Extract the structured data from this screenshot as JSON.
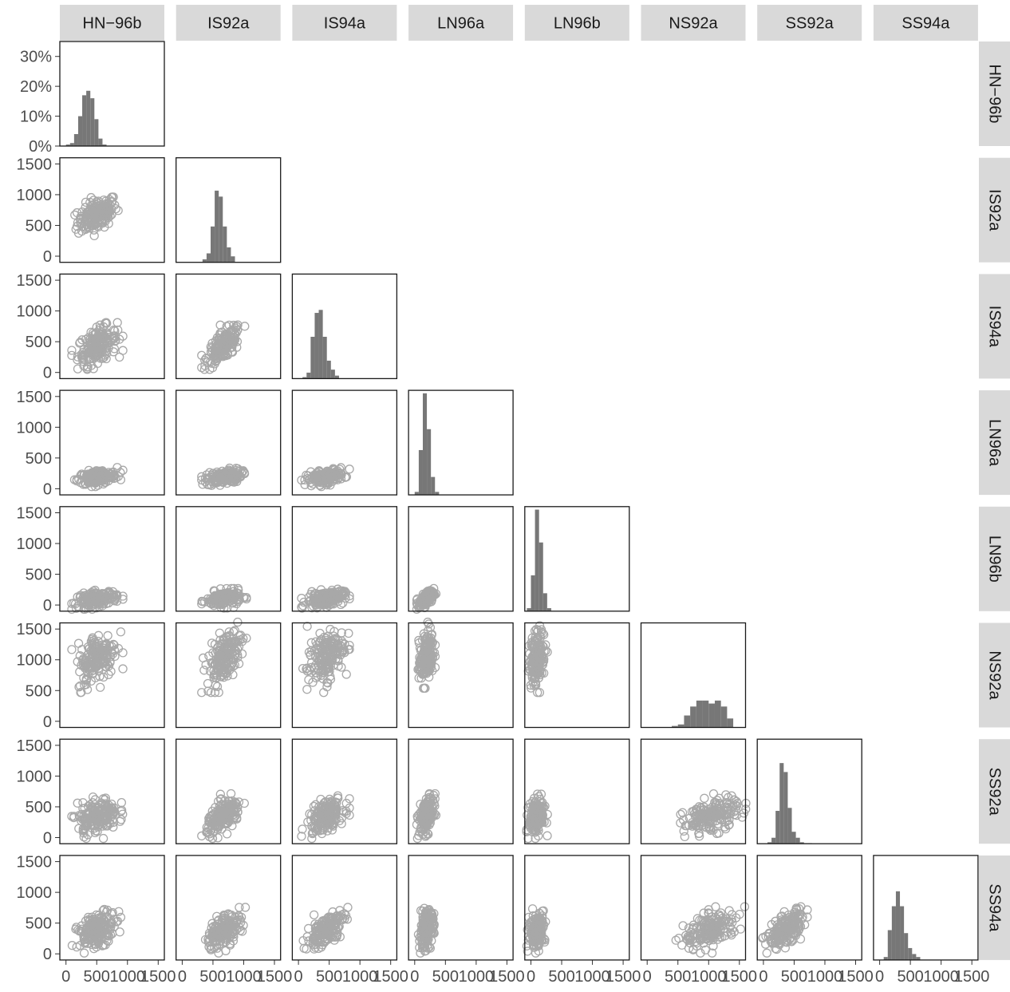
{
  "chart_data": {
    "type": "scatter-matrix",
    "variables": [
      "HN−96b",
      "IS92a",
      "IS94a",
      "LN96a",
      "LN96b",
      "NS92a",
      "SS92a",
      "SS94a"
    ],
    "diagonal": "histogram",
    "lower": "scatter",
    "grid": false,
    "colors": {
      "points": "#a8a8a8",
      "bars": "#777777",
      "strip": "#d9d9d9"
    },
    "hist_y_ticks": [
      "0%",
      "10%",
      "20%",
      "30%"
    ],
    "hist_y_range": [
      0,
      0.35
    ],
    "y_ticks": [
      "0",
      "500",
      "1000",
      "1500"
    ],
    "y_range": [
      -100,
      1600
    ],
    "x_ticks": [
      "0",
      "500",
      "1000",
      "1500"
    ],
    "x_range": [
      -100,
      1600
    ],
    "x_tick_labels_bottom": [
      "0",
      "500",
      "1000",
      "1500"
    ],
    "histograms": [
      {
        "var": "HN−96b",
        "bin_width": 66,
        "start": 0,
        "share": [
          0.005,
          0.01,
          0.04,
          0.1,
          0.17,
          0.185,
          0.16,
          0.09,
          0.025,
          0.005
        ]
      },
      {
        "var": "IS92a",
        "bin_width": 66,
        "start": 330,
        "share": [
          0.01,
          0.03,
          0.12,
          0.24,
          0.22,
          0.12,
          0.05,
          0.02
        ]
      },
      {
        "var": "IS94a",
        "bin_width": 66,
        "start": 66,
        "share": [
          0.005,
          0.02,
          0.14,
          0.22,
          0.23,
          0.14,
          0.06,
          0.03,
          0.01
        ]
      },
      {
        "var": "LN96a",
        "bin_width": 66,
        "start": 0,
        "share": [
          0.01,
          0.15,
          0.34,
          0.22,
          0.06,
          0.01
        ]
      },
      {
        "var": "LN96b",
        "bin_width": 66,
        "start": -66,
        "share": [
          0.01,
          0.12,
          0.34,
          0.23,
          0.06,
          0.01
        ]
      },
      {
        "var": "NS92a",
        "bin_width": 100,
        "start": 400,
        "share": [
          0.005,
          0.01,
          0.04,
          0.07,
          0.09,
          0.09,
          0.08,
          0.09,
          0.07,
          0.03
        ]
      },
      {
        "var": "SS92a",
        "bin_width": 66,
        "start": 66,
        "share": [
          0.005,
          0.02,
          0.11,
          0.27,
          0.24,
          0.12,
          0.04,
          0.02,
          0.005,
          0.002,
          0.002
        ]
      },
      {
        "var": "SS94a",
        "bin_width": 66,
        "start": 66,
        "share": [
          0.01,
          0.1,
          0.18,
          0.23,
          0.18,
          0.09,
          0.04,
          0.02,
          0.01
        ]
      }
    ],
    "distributions": [
      {
        "var": "HN−96b",
        "mean": 510,
        "sd": 160
      },
      {
        "var": "IS92a",
        "mean": 680,
        "sd": 140
      },
      {
        "var": "IS94a",
        "mean": 440,
        "sd": 150
      },
      {
        "var": "LN96a",
        "mean": 190,
        "sd": 60
      },
      {
        "var": "LN96b",
        "mean": 100,
        "sd": 65
      },
      {
        "var": "NS92a",
        "mean": 1040,
        "sd": 220
      },
      {
        "var": "SS92a",
        "mean": 350,
        "sd": 140
      },
      {
        "var": "SS94a",
        "mean": 390,
        "sd": 145
      }
    ],
    "correlations": {
      "IS92a": {
        "HN−96b": 0.45
      },
      "IS94a": {
        "HN−96b": 0.45,
        "IS92a": 0.65
      },
      "LN96a": {
        "HN−96b": 0.35,
        "IS92a": 0.35,
        "IS94a": 0.4
      },
      "LN96b": {
        "HN−96b": 0.35,
        "IS92a": 0.25,
        "IS94a": 0.35,
        "LN96a": 0.6
      },
      "NS92a": {
        "HN−96b": 0.4,
        "IS92a": 0.55,
        "IS94a": 0.45,
        "LN96a": 0.35,
        "LN96b": 0.25
      },
      "SS92a": {
        "HN−96b": 0.3,
        "IS92a": 0.55,
        "IS94a": 0.5,
        "LN96a": 0.3,
        "LN96b": 0.25,
        "NS92a": 0.4
      },
      "SS94a": {
        "HN−96b": 0.45,
        "IS92a": 0.55,
        "IS94a": 0.6,
        "LN96a": 0.35,
        "LN96b": 0.3,
        "NS92a": 0.45,
        "SS92a": 0.55
      }
    },
    "points_per_panel": 170
  }
}
